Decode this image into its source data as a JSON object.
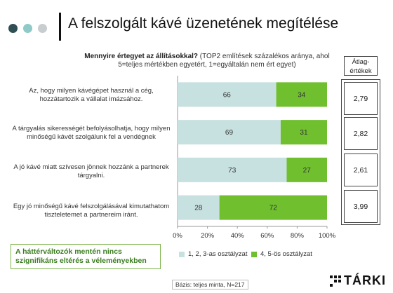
{
  "title": "A felszolgált kávé üzenetének megítélése",
  "question_bold": "Mennyire értegyet az állításokkal?",
  "question_rest": " (TOP2 említések százalékos aránya, ahol 5=teljes mértékben egyetért, 1=egyáltalán nem ért egyet)",
  "avg_header_line1": "Átlag-",
  "avg_header_line2": "értékek",
  "categories": [
    "Az, hogy milyen kávégépet használ a cég, hozzátartozik a vállalat imázsához.",
    "A tárgyalás sikerességét befolyásolhatja, hogy milyen minőségű kávét szolgálunk fel a vendégnek",
    "A jó kávé miatt szívesen jönnek hozzánk a partnerek tárgyalni.",
    "Egy jó minőségű kávé felszolgálásával kimutathatom tiszteletemet a partnereim iránt."
  ],
  "averages": [
    "2,79",
    "2,82",
    "2,61",
    "3,99"
  ],
  "note": "A háttérváltozók mentén nincs szignifikáns eltérés a véleményekben",
  "base": "Bázis: teljes minta, N=217",
  "logo": "TÁRKI",
  "colors": {
    "series1": "#c7e1e0",
    "series2": "#6fbf2f",
    "dot1": "#2f4f55",
    "dot2": "#8fc9c8",
    "dot3": "#c8cdd0"
  },
  "chart_data": {
    "type": "bar",
    "orientation": "horizontal",
    "stacked": true,
    "categories": [
      "Az, hogy milyen kávégépet használ a cég, hozzátartozik a vállalat imázsához.",
      "A tárgyalás sikerességét befolyásolhatja, hogy milyen minőségű kávét szolgálunk fel a vendégnek",
      "A jó kávé miatt szívesen jönnek hozzánk a partnerek tárgyalni.",
      "Egy jó minőségű kávé felszolgálásával kimutathatom tiszteletemet a partnereim iránt."
    ],
    "series": [
      {
        "name": "1, 2, 3-as osztályzat",
        "values": [
          66,
          69,
          73,
          28
        ]
      },
      {
        "name": "4, 5-ös osztályzat",
        "values": [
          34,
          31,
          27,
          72
        ]
      }
    ],
    "xlim": [
      0,
      100
    ],
    "xticks": [
      "0%",
      "20%",
      "40%",
      "60%",
      "80%",
      "100%"
    ],
    "legend": "bottom"
  }
}
